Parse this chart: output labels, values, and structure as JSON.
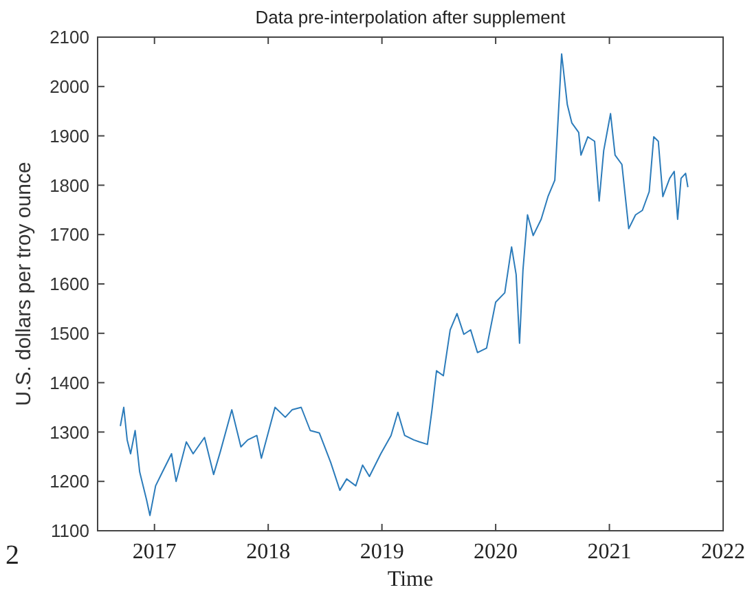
{
  "chart_data": {
    "type": "line",
    "title": "Data pre-interpolation after supplement",
    "xlabel": "Time",
    "ylabel": "U.S. dollars per troy ounce",
    "annotations": [
      "2"
    ],
    "x": [
      2016.7,
      2016.73,
      2016.76,
      2016.79,
      2016.83,
      2016.87,
      2016.93,
      2016.96,
      2017.01,
      2017.07,
      2017.15,
      2017.19,
      2017.28,
      2017.34,
      2017.44,
      2017.52,
      2017.58,
      2017.68,
      2017.76,
      2017.82,
      2017.9,
      2017.94,
      2018.06,
      2018.15,
      2018.21,
      2018.29,
      2018.37,
      2018.45,
      2018.55,
      2018.63,
      2018.69,
      2018.77,
      2018.83,
      2018.89,
      2018.99,
      2019.08,
      2019.14,
      2019.2,
      2019.28,
      2019.33,
      2019.4,
      2019.44,
      2019.48,
      2019.54,
      2019.6,
      2019.66,
      2019.72,
      2019.78,
      2019.84,
      2019.92,
      2020.0,
      2020.08,
      2020.14,
      2020.18,
      2020.21,
      2020.24,
      2020.28,
      2020.33,
      2020.4,
      2020.46,
      2020.52,
      2020.58,
      2020.63,
      2020.67,
      2020.73,
      2020.75,
      2020.81,
      2020.87,
      2020.91,
      2020.95,
      2021.01,
      2021.05,
      2021.11,
      2021.17,
      2021.23,
      2021.29,
      2021.35,
      2021.39,
      2021.43,
      2021.47,
      2021.53,
      2021.57,
      2021.6,
      2021.63,
      2021.67,
      2021.69
    ],
    "series": [
      {
        "color": "#2b7bba",
        "values": [
          1312,
          1350,
          1284,
          1256,
          1303,
          1219,
          1163,
          1131,
          1191,
          1219,
          1256,
          1200,
          1280,
          1256,
          1289,
          1214,
          1261,
          1345,
          1270,
          1284,
          1293,
          1247,
          1350,
          1330,
          1345,
          1350,
          1303,
          1298,
          1238,
          1182,
          1205,
          1191,
          1233,
          1210,
          1256,
          1293,
          1340,
          1293,
          1284,
          1280,
          1275,
          1345,
          1424,
          1414,
          1507,
          1540,
          1498,
          1507,
          1461,
          1470,
          1563,
          1582,
          1675,
          1619,
          1480,
          1628,
          1740,
          1698,
          1731,
          1777,
          1810,
          2066,
          1963,
          1926,
          1907,
          1861,
          1898,
          1889,
          1768,
          1870,
          1945,
          1861,
          1842,
          1712,
          1740,
          1749,
          1787,
          1898,
          1889,
          1777,
          1814,
          1828,
          1731,
          1814,
          1824,
          1796
        ]
      }
    ],
    "xlim": [
      2016.5,
      2022
    ],
    "xticks": [
      2017,
      2018,
      2019,
      2020,
      2021,
      2022
    ],
    "ylim": [
      1100,
      2100
    ],
    "yticks": [
      1100,
      1200,
      1300,
      1400,
      1500,
      1600,
      1700,
      1800,
      1900,
      2000,
      2100
    ],
    "grid": false
  }
}
